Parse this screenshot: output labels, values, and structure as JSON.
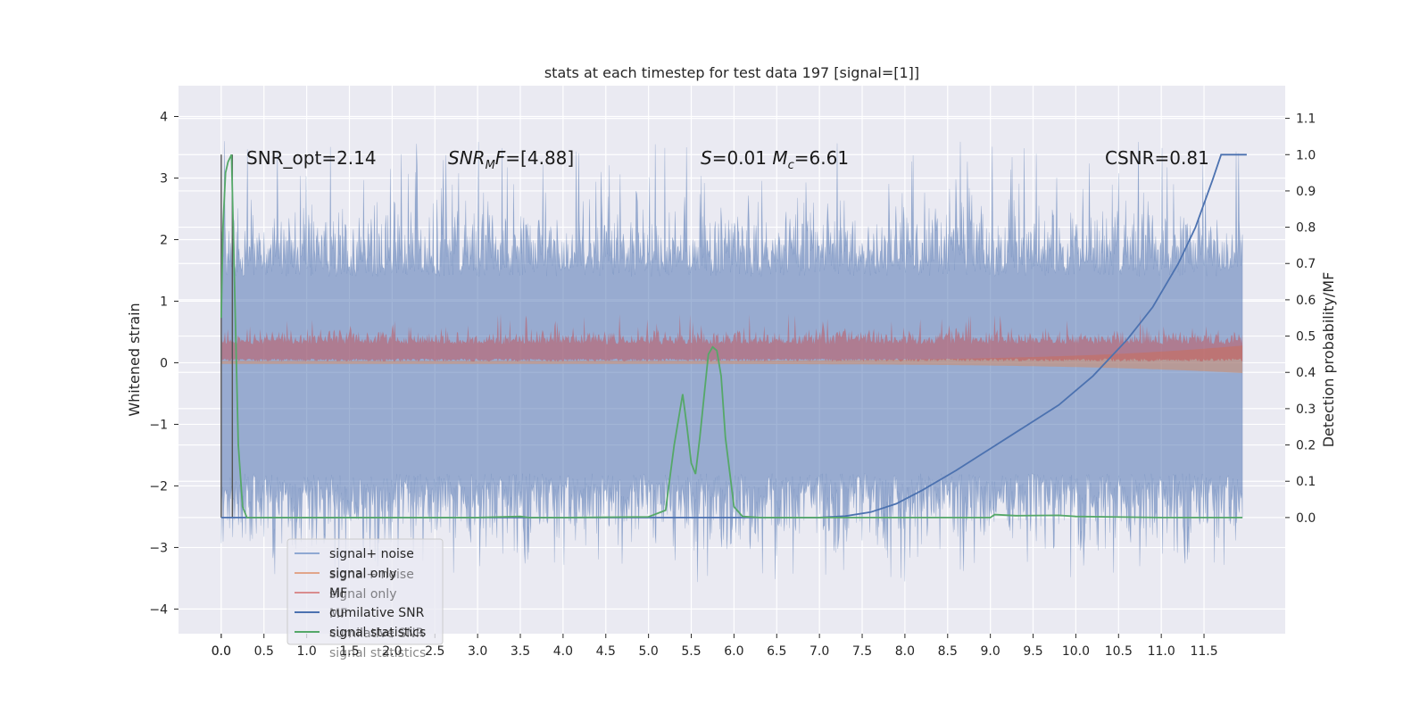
{
  "chart_data": {
    "type": "line",
    "title": "stats at each timestep for test data 197 [signal=[1]]",
    "xlabel": "",
    "ylabel": "Whitened strain",
    "ylabel_right": "Detection probability/MF",
    "xlim": [
      -0.5,
      12.45
    ],
    "ylim": [
      -4.4,
      4.5
    ],
    "ylim_right": [
      -0.32,
      1.19
    ],
    "x_ticks": [
      "0.0",
      "0.0",
      "0.5",
      "1.0",
      "1.5",
      "2.0",
      "2.5",
      "3.0",
      "3.5",
      "4.0",
      "4.5",
      "5.0",
      "5.5",
      "6.0",
      "6.5",
      "7.0",
      "7.5",
      "8.0",
      "8.5",
      "9.0",
      "9.5",
      "10.0",
      "10.5",
      "11.0",
      "11.5"
    ],
    "x_tick_values": [
      0.0,
      0.0,
      0.5,
      1.0,
      1.5,
      2.0,
      2.5,
      3.0,
      3.5,
      4.0,
      4.5,
      5.0,
      5.5,
      6.0,
      6.5,
      7.0,
      7.5,
      8.0,
      8.5,
      9.0,
      9.5,
      10.0,
      10.5,
      11.0,
      11.5
    ],
    "y_ticks": [
      "−4",
      "−3",
      "−2",
      "−1",
      "0",
      "1",
      "2",
      "3",
      "4"
    ],
    "y_tick_values": [
      -4,
      -3,
      -2,
      -1,
      0,
      1,
      2,
      3,
      4
    ],
    "y_right_ticks": [
      "0.0",
      "0.1",
      "0.2",
      "0.3",
      "0.4",
      "0.5",
      "0.6",
      "0.7",
      "0.8",
      "0.9",
      "1.0",
      "1.1"
    ],
    "y_right_tick_values": [
      0.0,
      0.1,
      0.2,
      0.3,
      0.4,
      0.5,
      0.6,
      0.7,
      0.8,
      0.9,
      1.0,
      1.1
    ],
    "grid": true,
    "legend_position": "bottom-left",
    "annotations": [
      {
        "text": "SNR_opt=2.14",
        "x": 0.2,
        "y": 3.3
      },
      {
        "text": "SNR_MF=[4.88]",
        "x": 2.6,
        "y": 3.3
      },
      {
        "text": "S=0.01   M_c=6.61",
        "x": 5.55,
        "y": 3.3
      },
      {
        "text": "CSNR=0.81",
        "x": 10.4,
        "y": 3.3
      }
    ],
    "series": [
      {
        "name": "signal+ noise",
        "color": "#4c72b0",
        "axis": "left",
        "style": "noise band",
        "x_range": [
          0.0,
          11.95
        ],
        "typical_range": [
          -2.3,
          2.0
        ],
        "extremes": [
          -3.9,
          4.1
        ]
      },
      {
        "name": "signal only",
        "color": "#dd8452",
        "axis": "left",
        "style": "small band near zero, widening to end",
        "x_range": [
          0.0,
          11.95
        ]
      },
      {
        "name": "MF",
        "color": "#c44e52",
        "axis": "left",
        "style": "positive noise band",
        "x_range": [
          0.0,
          11.95
        ],
        "typical_range": [
          0.0,
          0.6
        ],
        "peak": 1.0
      },
      {
        "name": "cumilative SNR",
        "color": "#4c72b0",
        "axis": "right",
        "x": [
          0.0,
          7.0,
          7.3,
          7.6,
          7.9,
          8.2,
          8.6,
          9.0,
          9.4,
          9.8,
          10.2,
          10.6,
          10.9,
          11.2,
          11.4,
          11.6,
          11.7,
          12.0
        ],
        "y": [
          0.0,
          0.0,
          0.004,
          0.015,
          0.038,
          0.075,
          0.13,
          0.19,
          0.25,
          0.31,
          0.39,
          0.49,
          0.58,
          0.7,
          0.8,
          0.93,
          1.0,
          1.0
        ]
      },
      {
        "name": "signal statistics",
        "color": "#55a868",
        "axis": "right",
        "x": [
          0.0,
          0.02,
          0.05,
          0.08,
          0.12,
          0.16,
          0.2,
          0.25,
          0.3,
          0.6,
          1.0,
          1.5,
          2.0,
          3.0,
          3.5,
          3.6,
          4.0,
          5.0,
          5.2,
          5.3,
          5.4,
          5.45,
          5.5,
          5.55,
          5.6,
          5.7,
          5.75,
          5.8,
          5.85,
          5.9,
          6.0,
          6.1,
          6.3,
          7.0,
          8.0,
          9.0,
          9.05,
          9.3,
          9.8,
          10.0,
          11.0,
          11.95
        ],
        "y": [
          0.55,
          0.8,
          0.95,
          0.98,
          1.0,
          0.6,
          0.2,
          0.03,
          0.0,
          0.0,
          0.0,
          0.0,
          0.0,
          0.0,
          0.003,
          0.0,
          0.0,
          0.002,
          0.02,
          0.2,
          0.34,
          0.25,
          0.15,
          0.12,
          0.22,
          0.45,
          0.47,
          0.46,
          0.39,
          0.22,
          0.03,
          0.003,
          0.0,
          0.0,
          0.0,
          0.0,
          0.008,
          0.005,
          0.006,
          0.003,
          0.0,
          0.0
        ]
      }
    ],
    "vertical_markers": [
      {
        "x": 0.0,
        "color": "#555555"
      },
      {
        "x": 0.13,
        "color": "#555555"
      }
    ]
  },
  "legend": {
    "items": [
      {
        "label": "signal+ noise",
        "ghost": "signal+ noise",
        "color": "#8fa8d3"
      },
      {
        "label": "signal only",
        "ghost": "signal only",
        "color": "#e1a58a"
      },
      {
        "label": "MF",
        "ghost": "MF",
        "color": "#d98c8e"
      },
      {
        "label": "cumilative SNR",
        "ghost": "cumilative SNR",
        "color": "#4c72b0"
      },
      {
        "label": "signal statistics",
        "ghost": "signal statistics",
        "color": "#55a868"
      }
    ]
  },
  "colors": {
    "axes_bg": "#eaeaf2",
    "grid": "#ffffff",
    "noise_band": "#4c72b0",
    "mf_band": "#c44e52",
    "signal_band": "#dd8452",
    "cumulative": "#4c72b0",
    "statistics": "#55a868"
  }
}
